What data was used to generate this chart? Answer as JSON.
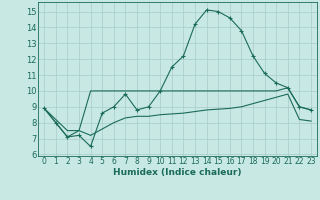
{
  "xlabel": "Humidex (Indice chaleur)",
  "bg_color": "#c8e8e4",
  "grid_color": "#a8ccc8",
  "line_color": "#1a6b5a",
  "x_values": [
    0,
    1,
    2,
    3,
    4,
    5,
    6,
    7,
    8,
    9,
    10,
    11,
    12,
    13,
    14,
    15,
    16,
    17,
    18,
    19,
    20,
    21,
    22,
    23
  ],
  "line1_y": [
    8.9,
    8.0,
    7.1,
    7.2,
    6.5,
    8.6,
    9.0,
    9.8,
    8.8,
    9.0,
    10.0,
    11.5,
    12.2,
    14.2,
    15.1,
    15.0,
    14.6,
    13.8,
    12.2,
    11.1,
    10.5,
    10.2,
    9.0,
    8.8
  ],
  "line2_y": [
    8.9,
    8.0,
    7.1,
    7.5,
    10.0,
    10.0,
    10.0,
    10.0,
    10.0,
    10.0,
    10.0,
    10.0,
    10.0,
    10.0,
    10.0,
    10.0,
    10.0,
    10.0,
    10.0,
    10.0,
    10.0,
    10.2,
    9.0,
    8.8
  ],
  "line3_y": [
    8.9,
    8.2,
    7.5,
    7.5,
    7.2,
    7.6,
    8.0,
    8.3,
    8.4,
    8.4,
    8.5,
    8.55,
    8.6,
    8.7,
    8.8,
    8.85,
    8.9,
    9.0,
    9.2,
    9.4,
    9.6,
    9.8,
    8.2,
    8.1
  ],
  "ylim": [
    5.9,
    15.6
  ],
  "xlim": [
    -0.5,
    23.5
  ],
  "yticks": [
    6,
    7,
    8,
    9,
    10,
    11,
    12,
    13,
    14,
    15
  ],
  "xticks": [
    0,
    1,
    2,
    3,
    4,
    5,
    6,
    7,
    8,
    9,
    10,
    11,
    12,
    13,
    14,
    15,
    16,
    17,
    18,
    19,
    20,
    21,
    22,
    23
  ],
  "xlabel_fontsize": 6.5,
  "tick_fontsize": 5.5,
  "ytick_fontsize": 6.0
}
